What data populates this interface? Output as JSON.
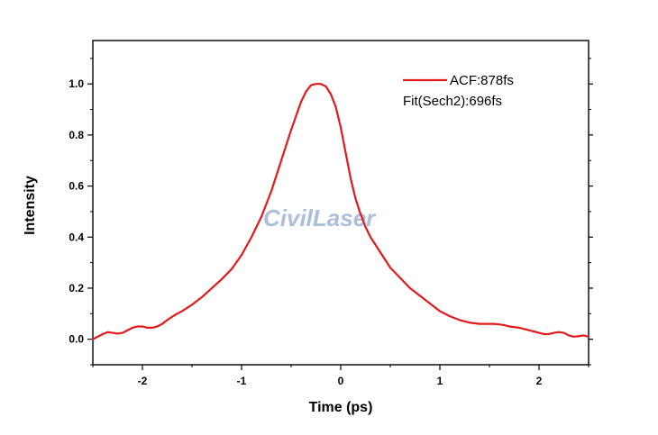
{
  "chart_data": {
    "type": "line",
    "xlabel": "Time (ps)",
    "ylabel": "Intensity",
    "xlim": [
      -2.5,
      2.5
    ],
    "ylim": [
      -0.1,
      1.17
    ],
    "x_ticks": [
      -2,
      -1,
      0,
      1,
      2
    ],
    "x_tick_labels": [
      "-2",
      "-1",
      "0",
      "1",
      "2"
    ],
    "y_ticks": [
      0.0,
      0.2,
      0.4,
      0.6,
      0.8,
      1.0
    ],
    "y_tick_labels": [
      "0.0",
      "0.2",
      "0.4",
      "0.6",
      "0.8",
      "1.0"
    ],
    "grid": false,
    "legend_position": "top-right",
    "series": [
      {
        "name": "ACF:878fs",
        "color": "#e31a1c",
        "x": [
          -2.5,
          -2.45,
          -2.4,
          -2.35,
          -2.3,
          -2.25,
          -2.2,
          -2.15,
          -2.1,
          -2.05,
          -2.0,
          -1.95,
          -1.9,
          -1.85,
          -1.8,
          -1.75,
          -1.7,
          -1.65,
          -1.6,
          -1.5,
          -1.4,
          -1.3,
          -1.2,
          -1.1,
          -1.0,
          -0.9,
          -0.8,
          -0.7,
          -0.6,
          -0.5,
          -0.4,
          -0.35,
          -0.3,
          -0.25,
          -0.2,
          -0.15,
          -0.1,
          -0.05,
          0.0,
          0.05,
          0.1,
          0.15,
          0.2,
          0.25,
          0.3,
          0.4,
          0.5,
          0.6,
          0.7,
          0.8,
          0.9,
          1.0,
          1.1,
          1.2,
          1.3,
          1.4,
          1.5,
          1.55,
          1.6,
          1.65,
          1.7,
          1.8,
          1.9,
          2.0,
          2.05,
          2.1,
          2.15,
          2.2,
          2.25,
          2.3,
          2.35,
          2.4,
          2.45,
          2.5
        ],
        "y": [
          0.0,
          0.01,
          0.02,
          0.028,
          0.025,
          0.022,
          0.025,
          0.035,
          0.045,
          0.05,
          0.05,
          0.045,
          0.045,
          0.05,
          0.06,
          0.075,
          0.088,
          0.1,
          0.11,
          0.135,
          0.165,
          0.2,
          0.235,
          0.275,
          0.33,
          0.4,
          0.48,
          0.58,
          0.7,
          0.82,
          0.93,
          0.97,
          0.995,
          1.0,
          1.0,
          0.99,
          0.96,
          0.91,
          0.83,
          0.73,
          0.63,
          0.55,
          0.49,
          0.44,
          0.4,
          0.34,
          0.28,
          0.24,
          0.2,
          0.17,
          0.14,
          0.11,
          0.09,
          0.075,
          0.065,
          0.06,
          0.06,
          0.06,
          0.058,
          0.055,
          0.05,
          0.045,
          0.035,
          0.025,
          0.02,
          0.02,
          0.025,
          0.028,
          0.025,
          0.015,
          0.01,
          0.012,
          0.015,
          0.01
        ]
      }
    ],
    "annotations": [
      "Fit(Sech2):696fs"
    ],
    "watermark": "CivilLaser"
  }
}
